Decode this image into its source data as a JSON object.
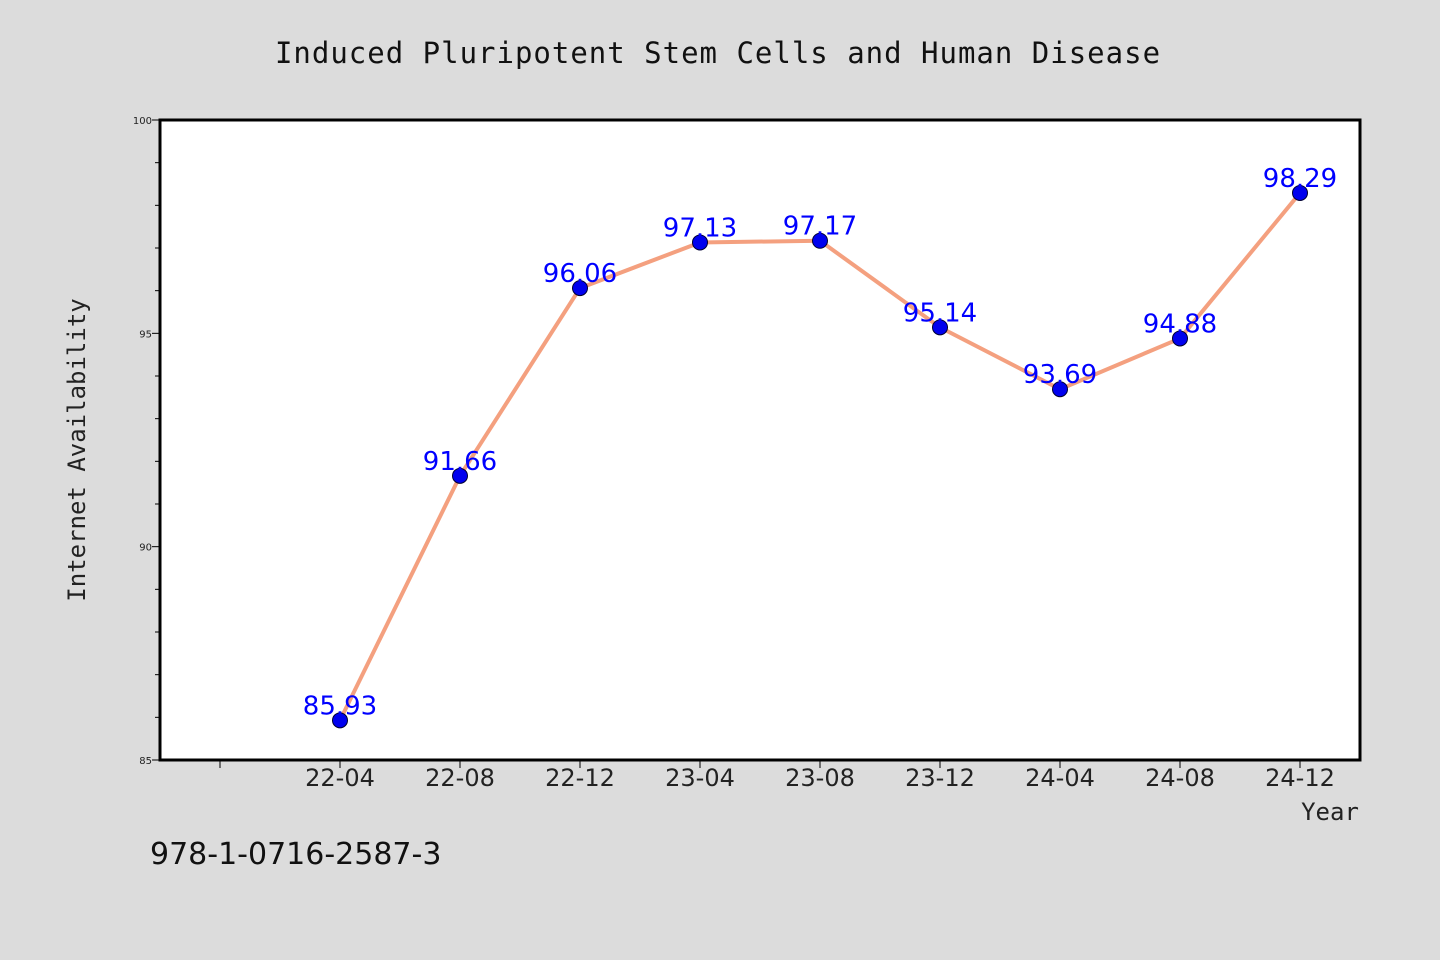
{
  "chart_data": {
    "type": "line",
    "title": "Induced Pluripotent Stem Cells and Human Disease",
    "xlabel": "Year",
    "ylabel": "Internet Availability",
    "categories": [
      "22-04",
      "22-08",
      "22-12",
      "23-04",
      "23-08",
      "23-12",
      "24-04",
      "24-08",
      "24-12"
    ],
    "values": [
      85.93,
      91.66,
      96.06,
      97.13,
      97.17,
      95.14,
      93.69,
      94.88,
      98.29
    ],
    "data_labels": [
      "85.93",
      "91.66",
      "96.06",
      "97.13",
      "97.17",
      "95.14",
      "93.69",
      "94.88",
      "98.29"
    ],
    "ylim": [
      85,
      100
    ],
    "yticks": [
      85,
      90,
      95,
      100
    ],
    "grid": false,
    "colors": {
      "line": "#f4a07f",
      "marker": "#0000ee",
      "label": "#0000ff",
      "background": "#dcdcdc",
      "plot_background": "#ffffff"
    }
  },
  "footer": {
    "isbn": "978-1-0716-2587-3"
  }
}
